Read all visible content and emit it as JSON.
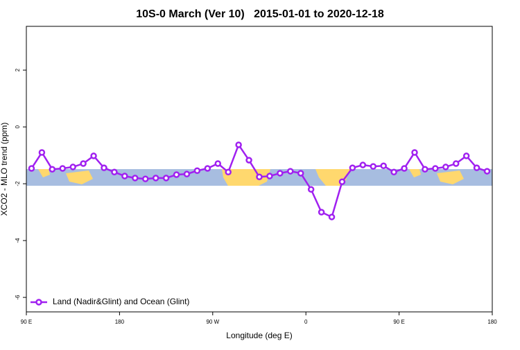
{
  "chart_data": {
    "type": "line",
    "title": "10S-0 March (Ver 10)   2015-01-01 to 2020-12-18",
    "x_label": "Longitude (deg E)",
    "y_label": "XCO2 - MLO trend (ppm)",
    "x": [
      95,
      105,
      115,
      125,
      135,
      145,
      155,
      165,
      175,
      185,
      195,
      205,
      215,
      225,
      235,
      245,
      255,
      265,
      275,
      285,
      295,
      305,
      315,
      325,
      335,
      345,
      355,
      365,
      375,
      385,
      395,
      405,
      415,
      425,
      435,
      445,
      455,
      465,
      475,
      485,
      495,
      505,
      515,
      525,
      535
    ],
    "series": [
      {
        "name": "Land (Nadir&Glint) and Ocean (Glint)",
        "color": "#a020f0",
        "values": [
          -1.46,
          -0.9,
          -1.49,
          -1.46,
          -1.41,
          -1.29,
          -1.02,
          -1.44,
          -1.59,
          -1.73,
          -1.8,
          -1.83,
          -1.8,
          -1.8,
          -1.68,
          -1.66,
          -1.54,
          -1.46,
          -1.29,
          -1.59,
          -0.63,
          -1.17,
          -1.76,
          -1.73,
          -1.63,
          -1.56,
          -1.63,
          -2.2,
          -3.0,
          -3.17,
          -1.93,
          -1.44,
          -1.34,
          -1.39,
          -1.37,
          -1.59,
          -1.46,
          -0.9,
          -1.49,
          -1.46,
          -1.41,
          -1.29,
          -1.02,
          -1.44,
          -1.56
        ]
      }
    ],
    "xlim": [
      90,
      540
    ],
    "xticks": [
      {
        "value": 90,
        "label": "90 E"
      },
      {
        "value": 180,
        "label": "180"
      },
      {
        "value": 270,
        "label": "90 W"
      },
      {
        "value": 360,
        "label": "0"
      },
      {
        "value": 450,
        "label": "90 E"
      },
      {
        "value": 540,
        "label": "180"
      }
    ],
    "ylim": [
      -6.51,
      3.54
    ],
    "yticks": [
      -6,
      -4,
      -2,
      0,
      2
    ],
    "legend": "bottom-left"
  }
}
